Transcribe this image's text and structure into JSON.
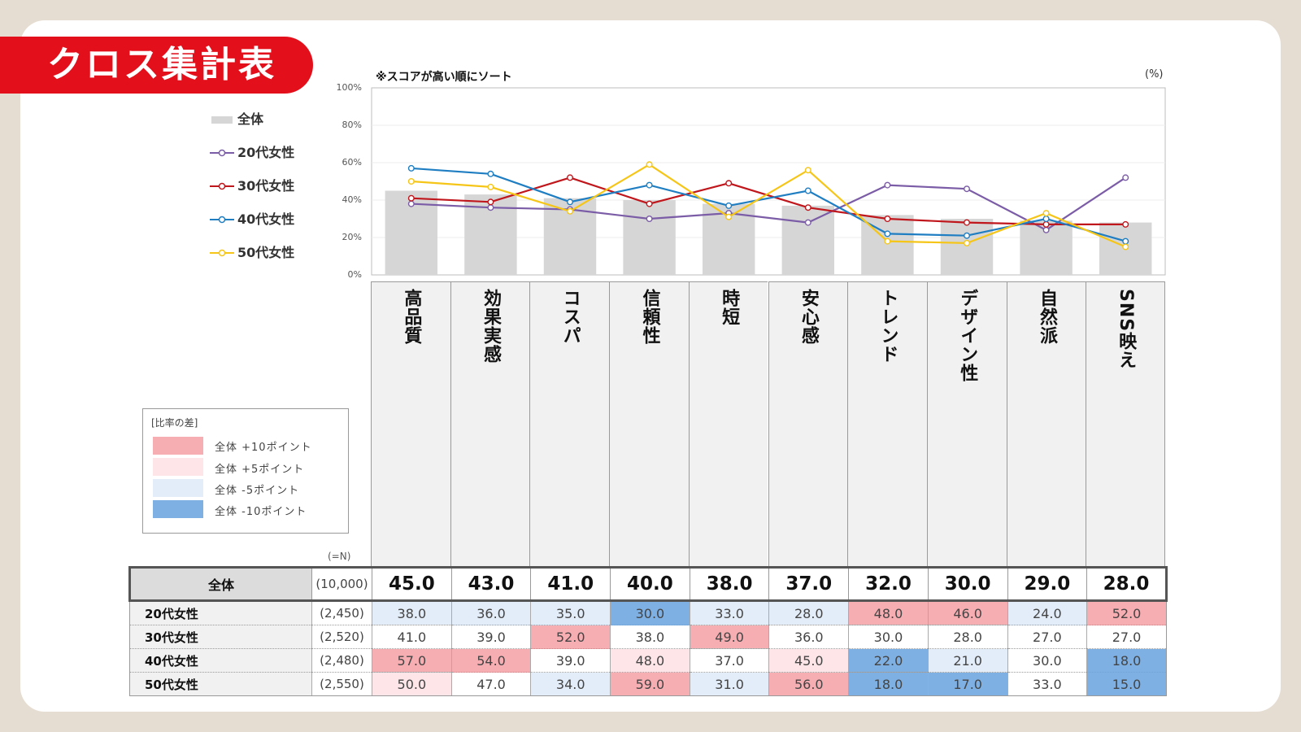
{
  "title": "クロス集計表",
  "chart_note": "※スコアが高い順にソート",
  "pct_unit": "(%)",
  "n_label": "(=N)",
  "colors": {
    "bar": "#d6d6d6",
    "s20": "#7b5ca6",
    "s30": "#c0171d",
    "s40": "#1f7ec2",
    "s50": "#f5c518",
    "p10": "#f7aeb3",
    "p5": "#fde5e8",
    "m5": "#e3edf9",
    "m10": "#7fb0e3"
  },
  "chart_data": {
    "type": "bar+line",
    "categories": [
      "高品質",
      "効果実感",
      "コスパ",
      "信頼性",
      "時短",
      "安心感",
      "トレンド",
      "デザイン性",
      "自然派",
      "SNS映え"
    ],
    "bar_series": {
      "name": "全体",
      "values": [
        45.0,
        43.0,
        41.0,
        40.0,
        38.0,
        37.0,
        32.0,
        30.0,
        29.0,
        28.0
      ]
    },
    "series": [
      {
        "name": "20代女性",
        "n": "(2,450)",
        "values": [
          38.0,
          36.0,
          35.0,
          30.0,
          33.0,
          28.0,
          48.0,
          46.0,
          24.0,
          52.0
        ]
      },
      {
        "name": "30代女性",
        "n": "(2,520)",
        "values": [
          41.0,
          39.0,
          52.0,
          38.0,
          49.0,
          36.0,
          30.0,
          28.0,
          27.0,
          27.0
        ]
      },
      {
        "name": "40代女性",
        "n": "(2,480)",
        "values": [
          57.0,
          54.0,
          39.0,
          48.0,
          37.0,
          45.0,
          22.0,
          21.0,
          30.0,
          18.0
        ]
      },
      {
        "name": "50代女性",
        "n": "(2,550)",
        "values": [
          50.0,
          47.0,
          34.0,
          59.0,
          31.0,
          56.0,
          18.0,
          17.0,
          33.0,
          15.0
        ]
      }
    ],
    "y_ticks": [
      "0%",
      "20%",
      "40%",
      "60%",
      "80%",
      "100%"
    ],
    "ylim": [
      0,
      100
    ],
    "legend_position": "left"
  },
  "table": {
    "total": {
      "name": "全体",
      "n": "(10,000)",
      "values": [
        "45.0",
        "43.0",
        "41.0",
        "40.0",
        "38.0",
        "37.0",
        "32.0",
        "30.0",
        "29.0",
        "28.0"
      ]
    },
    "rows": [
      {
        "name": "20代女性",
        "n": "(2,450)",
        "values": [
          "38.0",
          "36.0",
          "35.0",
          "30.0",
          "33.0",
          "28.0",
          "48.0",
          "46.0",
          "24.0",
          "52.0"
        ]
      },
      {
        "name": "30代女性",
        "n": "(2,520)",
        "values": [
          "41.0",
          "39.0",
          "52.0",
          "38.0",
          "49.0",
          "36.0",
          "30.0",
          "28.0",
          "27.0",
          "27.0"
        ]
      },
      {
        "name": "40代女性",
        "n": "(2,480)",
        "values": [
          "57.0",
          "54.0",
          "39.0",
          "48.0",
          "37.0",
          "45.0",
          "22.0",
          "21.0",
          "30.0",
          "18.0"
        ]
      },
      {
        "name": "50代女性",
        "n": "(2,550)",
        "values": [
          "50.0",
          "47.0",
          "34.0",
          "59.0",
          "31.0",
          "56.0",
          "18.0",
          "17.0",
          "33.0",
          "15.0"
        ]
      }
    ]
  },
  "diff_legend": {
    "title": "[比率の差]",
    "items": [
      {
        "label": "全体 +10ポイント",
        "cls": "p10"
      },
      {
        "label": "全体 +5ポイント",
        "cls": "p5"
      },
      {
        "label": "全体 -5ポイント",
        "cls": "m5"
      },
      {
        "label": "全体 -10ポイント",
        "cls": "m10"
      }
    ]
  },
  "legend": {
    "items": [
      {
        "label": "全体",
        "kind": "bar"
      },
      {
        "label": "20代女性",
        "kind": "s20"
      },
      {
        "label": "30代女性",
        "kind": "s30"
      },
      {
        "label": "40代女性",
        "kind": "s40"
      },
      {
        "label": "50代女性",
        "kind": "s50"
      }
    ]
  }
}
